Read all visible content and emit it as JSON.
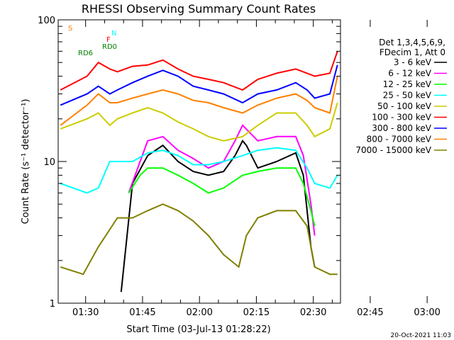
{
  "chart_data": {
    "type": "line",
    "title": "RHESSI Observing Summary Count Rates",
    "xlabel": "Start Time (03-Jul-13 01:28:22)",
    "ylabel": "Count Rate (s⁻¹ detector⁻¹)",
    "yscale": "log",
    "ylim": [
      1,
      100
    ],
    "xlim_minutes": [
      -5.6,
      68.8
    ],
    "x_tick_labels": [
      "01:30",
      "01:45",
      "02:00",
      "02:15",
      "02:30",
      "02:45",
      "03:00"
    ],
    "y_tick_labels": [
      "1",
      "10",
      "100"
    ],
    "legend_header": [
      "Det 1,3,4,5,6,9,",
      "FDecim 1, Att 0"
    ],
    "legend_position": "right",
    "footer": "20-Oct-2021 11:03",
    "series": [
      {
        "name": "3 - 6 keV",
        "color": "#000000",
        "points": [
          [
            11,
            1.2
          ],
          [
            14,
            7
          ],
          [
            18,
            11
          ],
          [
            22,
            13
          ],
          [
            26,
            10
          ],
          [
            30,
            8.5
          ],
          [
            34,
            8
          ],
          [
            38,
            8.5
          ],
          [
            41,
            11
          ],
          [
            43,
            14
          ],
          [
            44,
            13
          ],
          [
            47,
            9
          ],
          [
            52,
            10
          ],
          [
            57,
            11.5
          ],
          [
            59,
            8
          ],
          [
            61,
            2.5
          ],
          [
            62,
            1.8
          ]
        ]
      },
      {
        "name": "6 - 12 keV",
        "color": "#ff00ff",
        "points": [
          [
            13,
            6
          ],
          [
            16,
            10
          ],
          [
            18,
            14
          ],
          [
            22,
            15
          ],
          [
            26,
            12
          ],
          [
            30,
            10.5
          ],
          [
            34,
            9
          ],
          [
            38,
            10
          ],
          [
            41,
            14
          ],
          [
            43,
            18
          ],
          [
            47,
            14
          ],
          [
            52,
            15
          ],
          [
            57,
            15
          ],
          [
            59,
            11
          ],
          [
            61,
            5
          ],
          [
            62,
            3
          ]
        ]
      },
      {
        "name": "12 - 25 keV",
        "color": "#00ff00",
        "points": [
          [
            13,
            6
          ],
          [
            16,
            8
          ],
          [
            18,
            9
          ],
          [
            22,
            9
          ],
          [
            26,
            8
          ],
          [
            30,
            7
          ],
          [
            34,
            6
          ],
          [
            38,
            6.5
          ],
          [
            43,
            8
          ],
          [
            47,
            8.5
          ],
          [
            52,
            9
          ],
          [
            57,
            9
          ],
          [
            59,
            7
          ],
          [
            61,
            4.5
          ],
          [
            62,
            3.5
          ]
        ]
      },
      {
        "name": "25 - 50 keV",
        "color": "#00ffff",
        "points": [
          [
            -5,
            7
          ],
          [
            2,
            6
          ],
          [
            5,
            6.5
          ],
          [
            8,
            10
          ],
          [
            10,
            10
          ],
          [
            14,
            10
          ],
          [
            18,
            11.5
          ],
          [
            22,
            12
          ],
          [
            26,
            11
          ],
          [
            30,
            9.5
          ],
          [
            34,
            9.5
          ],
          [
            38,
            10
          ],
          [
            43,
            11
          ],
          [
            47,
            12
          ],
          [
            52,
            12.5
          ],
          [
            57,
            12
          ],
          [
            60,
            9
          ],
          [
            62,
            7
          ],
          [
            66,
            6.5
          ],
          [
            68,
            8
          ]
        ]
      },
      {
        "name": "50 - 100 keV",
        "color": "#cccc00",
        "points": [
          [
            -5,
            17
          ],
          [
            2,
            20
          ],
          [
            5,
            22
          ],
          [
            8,
            18
          ],
          [
            10,
            20
          ],
          [
            14,
            22
          ],
          [
            18,
            24
          ],
          [
            22,
            22
          ],
          [
            26,
            19
          ],
          [
            30,
            17
          ],
          [
            34,
            15
          ],
          [
            38,
            14
          ],
          [
            43,
            15
          ],
          [
            47,
            18
          ],
          [
            52,
            22
          ],
          [
            57,
            22
          ],
          [
            60,
            18
          ],
          [
            62,
            15
          ],
          [
            66,
            17
          ],
          [
            68,
            26
          ]
        ]
      },
      {
        "name": "100 - 300 keV",
        "color": "#ff0000",
        "points": [
          [
            -5,
            32
          ],
          [
            2,
            40
          ],
          [
            5,
            50
          ],
          [
            8,
            45
          ],
          [
            10,
            43
          ],
          [
            14,
            47
          ],
          [
            18,
            48
          ],
          [
            22,
            52
          ],
          [
            26,
            45
          ],
          [
            30,
            40
          ],
          [
            34,
            38
          ],
          [
            38,
            36
          ],
          [
            43,
            32
          ],
          [
            47,
            38
          ],
          [
            52,
            42
          ],
          [
            57,
            45
          ],
          [
            60,
            42
          ],
          [
            62,
            40
          ],
          [
            66,
            42
          ],
          [
            68,
            60
          ]
        ]
      },
      {
        "name": "300 - 800 keV",
        "color": "#0000ff",
        "points": [
          [
            -5,
            25
          ],
          [
            2,
            30
          ],
          [
            5,
            34
          ],
          [
            8,
            30
          ],
          [
            10,
            32
          ],
          [
            14,
            36
          ],
          [
            18,
            40
          ],
          [
            22,
            44
          ],
          [
            26,
            40
          ],
          [
            30,
            34
          ],
          [
            34,
            32
          ],
          [
            38,
            30
          ],
          [
            43,
            26
          ],
          [
            47,
            30
          ],
          [
            52,
            32
          ],
          [
            57,
            36
          ],
          [
            60,
            32
          ],
          [
            62,
            28
          ],
          [
            66,
            30
          ],
          [
            68,
            48
          ]
        ]
      },
      {
        "name": "800 - 7000 keV",
        "color": "#ff8000",
        "points": [
          [
            -5,
            18
          ],
          [
            2,
            25
          ],
          [
            5,
            30
          ],
          [
            8,
            26
          ],
          [
            10,
            26
          ],
          [
            14,
            28
          ],
          [
            18,
            30
          ],
          [
            22,
            32
          ],
          [
            26,
            30
          ],
          [
            30,
            27
          ],
          [
            34,
            26
          ],
          [
            38,
            24
          ],
          [
            43,
            22
          ],
          [
            47,
            25
          ],
          [
            52,
            28
          ],
          [
            57,
            30
          ],
          [
            60,
            27
          ],
          [
            62,
            24
          ],
          [
            66,
            22
          ],
          [
            68,
            40
          ]
        ]
      },
      {
        "name": "7000 - 15000 keV",
        "color": "#808000",
        "points": [
          [
            -5,
            1.8
          ],
          [
            1,
            1.6
          ],
          [
            5,
            2.5
          ],
          [
            10,
            4
          ],
          [
            14,
            4
          ],
          [
            18,
            4.5
          ],
          [
            22,
            5
          ],
          [
            26,
            4.5
          ],
          [
            30,
            3.8
          ],
          [
            34,
            3
          ],
          [
            38,
            2.2
          ],
          [
            42,
            1.8
          ],
          [
            44,
            3
          ],
          [
            47,
            4
          ],
          [
            52,
            4.5
          ],
          [
            57,
            4.5
          ],
          [
            60,
            3.5
          ],
          [
            62,
            1.8
          ],
          [
            66,
            1.6
          ],
          [
            68,
            1.6
          ]
        ]
      }
    ],
    "annotations": [
      {
        "text": "S",
        "color": "#ff8000"
      },
      {
        "text": "N",
        "color": "#00ffff"
      },
      {
        "text": "F",
        "color": "#ff0000"
      },
      {
        "text": "RD6",
        "color": "#008000"
      },
      {
        "text": "RD0",
        "color": "#008000"
      }
    ]
  }
}
